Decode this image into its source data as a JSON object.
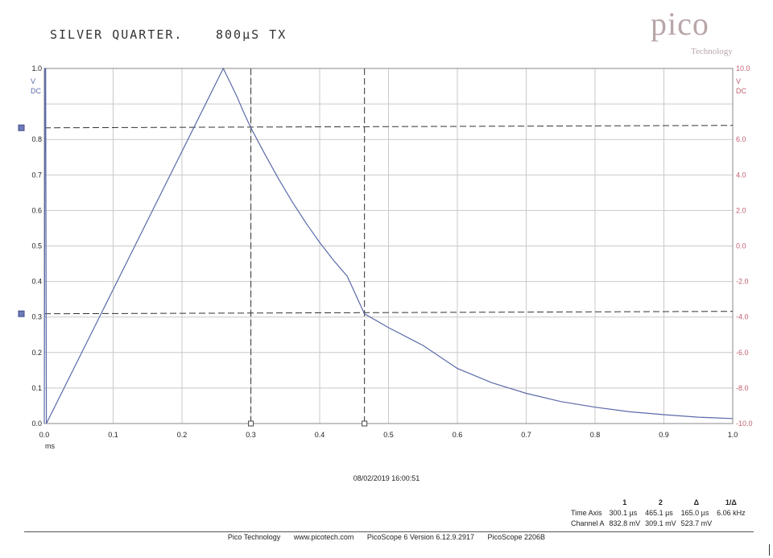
{
  "header": {
    "handwritten_title": "SILVER QUARTER.",
    "handwritten_note": "800µS TX"
  },
  "logo": {
    "word": "pico",
    "subtitle": "Technology"
  },
  "colors": {
    "trace": "#5b6aa8",
    "right_axis": "#c06070",
    "grid": "#c9c9c9",
    "cursor": "#333333"
  },
  "chart_data": {
    "type": "line",
    "title": "",
    "xlabel": "ms",
    "xlim": [
      0.0,
      1.0
    ],
    "ylim_left": [
      0.0,
      1.0
    ],
    "ylim_right": [
      -10.0,
      10.0
    ],
    "left_unit": [
      "V",
      "DC"
    ],
    "right_unit": [
      "V",
      "DC"
    ],
    "x_ticks": [
      "0.0",
      "0.1",
      "0.2",
      "0.3",
      "0.4",
      "0.5",
      "0.6",
      "0.7",
      "0.8",
      "0.9",
      "1.0"
    ],
    "y_ticks_left": [
      "1.0",
      "0.8",
      "0.7",
      "0.6",
      "0.5",
      "0.4",
      "0.3",
      "0.2",
      "0.1",
      "0.0"
    ],
    "y_ticks_right": [
      "10.0",
      "6.0",
      "4.0",
      "2.0",
      "0.0",
      "-2.0",
      "-4.0",
      "-6.0",
      "-8.0",
      "-10.0"
    ],
    "grid": true,
    "series": [
      {
        "x": [
          0.0,
          0.001,
          0.002,
          0.003,
          0.26,
          0.27,
          0.28,
          0.29,
          0.3,
          0.32,
          0.34,
          0.36,
          0.38,
          0.4,
          0.42,
          0.44,
          0.465,
          0.5,
          0.55,
          0.6,
          0.65,
          0.7,
          0.75,
          0.8,
          0.85,
          0.9,
          0.95,
          1.0
        ],
        "y": [
          0.0,
          1.0,
          1.0,
          0.0,
          1.0,
          0.96,
          0.92,
          0.875,
          0.833,
          0.76,
          0.69,
          0.625,
          0.565,
          0.51,
          0.46,
          0.415,
          0.309,
          0.27,
          0.22,
          0.155,
          0.115,
          0.085,
          0.062,
          0.046,
          0.033,
          0.025,
          0.018,
          0.014
        ]
      }
    ],
    "cursors": {
      "vertical_x": [
        0.3001,
        0.4651
      ],
      "horizontal_y": [
        0.8328,
        0.3091
      ]
    }
  },
  "timestamp": "08/02/2019 16:00:51",
  "measurements": {
    "headers": [
      "1",
      "2",
      "Δ",
      "1/Δ"
    ],
    "rows": [
      {
        "label": "Time Axis",
        "values": [
          "300.1 µs",
          "465.1 µs",
          "165.0 µs",
          "6.06 kHz"
        ]
      },
      {
        "label": "Channel A",
        "values": [
          "832.8 mV",
          "309.1 mV",
          "523.7 mV",
          ""
        ]
      }
    ]
  },
  "footer": {
    "company": "Pico Technology",
    "url": "www.picotech.com",
    "version": "PicoScope 6 Version 6.12.9.2917",
    "model": "PicoScope 2206B"
  }
}
